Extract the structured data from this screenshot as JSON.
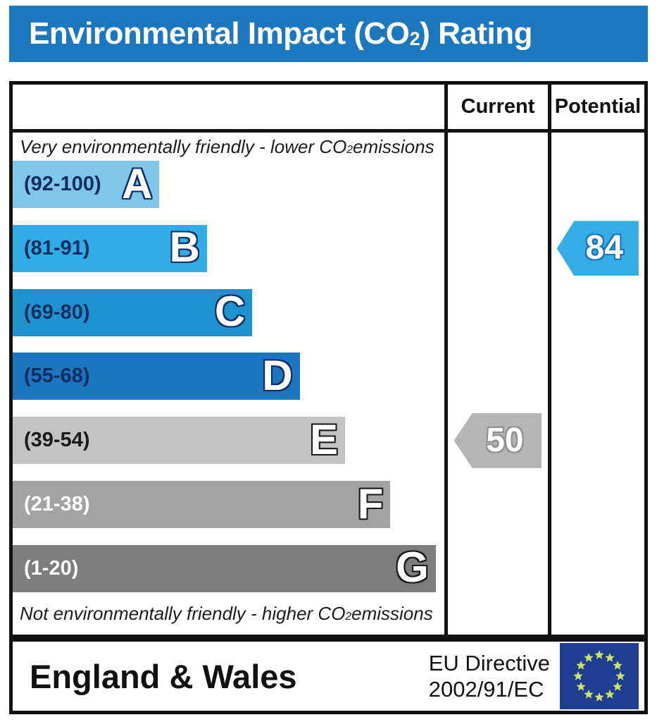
{
  "title": {
    "pre": "Environmental Impact (CO",
    "sub": "2",
    "post": ") Rating"
  },
  "header": {
    "current": "Current",
    "potential": "Potential"
  },
  "notes": {
    "top": {
      "pre": "Very environmentally friendly - lower CO",
      "sub": "2",
      "post": " emissions"
    },
    "bottom": {
      "pre": "Not environmentally friendly - higher CO",
      "sub": "2",
      "post": " emissions"
    }
  },
  "chart_data": {
    "type": "bar",
    "title": "Environmental Impact (CO2) Rating",
    "ylim": [
      1,
      100
    ],
    "bands": [
      {
        "letter": "A",
        "range": "(92-100)",
        "color": "#7fc6e9",
        "label_color": "#0d2e63",
        "letter_outline": "#0d2e63",
        "width_pct": 34
      },
      {
        "letter": "B",
        "range": "(81-91)",
        "color": "#2fade4",
        "label_color": "#0d2e63",
        "letter_outline": "#0d2e63",
        "width_pct": 45
      },
      {
        "letter": "C",
        "range": "(69-80)",
        "color": "#1e93d0",
        "label_color": "#0d2e63",
        "letter_outline": "#0d2e63",
        "width_pct": 55.5
      },
      {
        "letter": "D",
        "range": "(55-68)",
        "color": "#1b76bd",
        "label_color": "#0d2e63",
        "letter_outline": "#0d2e63",
        "width_pct": 66.5
      },
      {
        "letter": "E",
        "range": "(39-54)",
        "color": "#c3c3c3",
        "label_color": "#1a1a1a",
        "letter_outline": "#1a1a1a",
        "width_pct": 77
      },
      {
        "letter": "F",
        "range": "(21-38)",
        "color": "#a3a3a3",
        "label_color": "#ffffff",
        "letter_outline": "#1a1a1a",
        "width_pct": 87.5
      },
      {
        "letter": "G",
        "range": "(1-20)",
        "color": "#7d7d7d",
        "label_color": "#ffffff",
        "letter_outline": "#1a1a1a",
        "width_pct": 98
      }
    ],
    "current": {
      "value": 50,
      "band": "E",
      "band_index": 4,
      "color": "#b5b5b5",
      "value_outline": "#8f8f8f"
    },
    "potential": {
      "value": 84,
      "band": "B",
      "band_index": 1,
      "color": "#35ade4",
      "value_outline": "#1b74ba"
    }
  },
  "footer": {
    "region": "England & Wales",
    "eu_directive_line1": "EU Directive",
    "eu_directive_line2": "2002/91/EC"
  },
  "colors": {
    "banner_bg": "#1b78be",
    "banner_text": "#ffffff",
    "border": "#111111",
    "flag_bg": "#1e3e92",
    "flag_stars": "#cbe36b"
  }
}
